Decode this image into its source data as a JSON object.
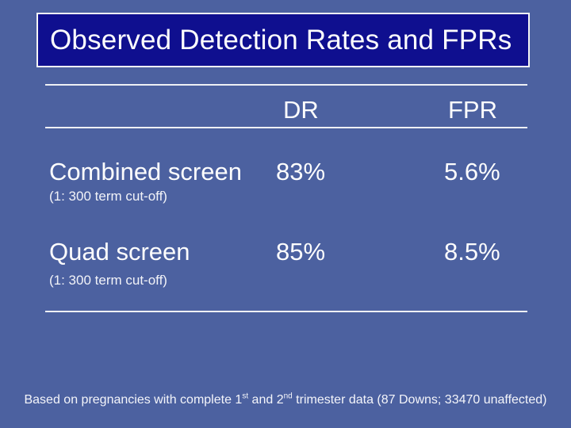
{
  "slide": {
    "title": "Observed Detection Rates and FPRs",
    "colors": {
      "background": "#4c61a0",
      "title_box_fill": "#0f0f8f",
      "title_box_border": "#f5f5f5",
      "text": "#ffffff",
      "rule": "#eef0f5"
    },
    "table": {
      "columns": {
        "dr": "DR",
        "fpr": "FPR"
      },
      "rows": [
        {
          "label": "Combined screen",
          "note": "(1: 300 term cut-off)",
          "dr": "83%",
          "fpr": "5.6%"
        },
        {
          "label": "Quad screen",
          "note": "(1: 300 term cut-off)",
          "dr": "85%",
          "fpr": "8.5%"
        }
      ]
    },
    "footer": {
      "part1": "Based on pregnancies with complete 1",
      "sup1": "st",
      "part2": " and 2",
      "sup2": "nd",
      "part3": " trimester data (87 Downs; 33470 unaffected)"
    }
  }
}
